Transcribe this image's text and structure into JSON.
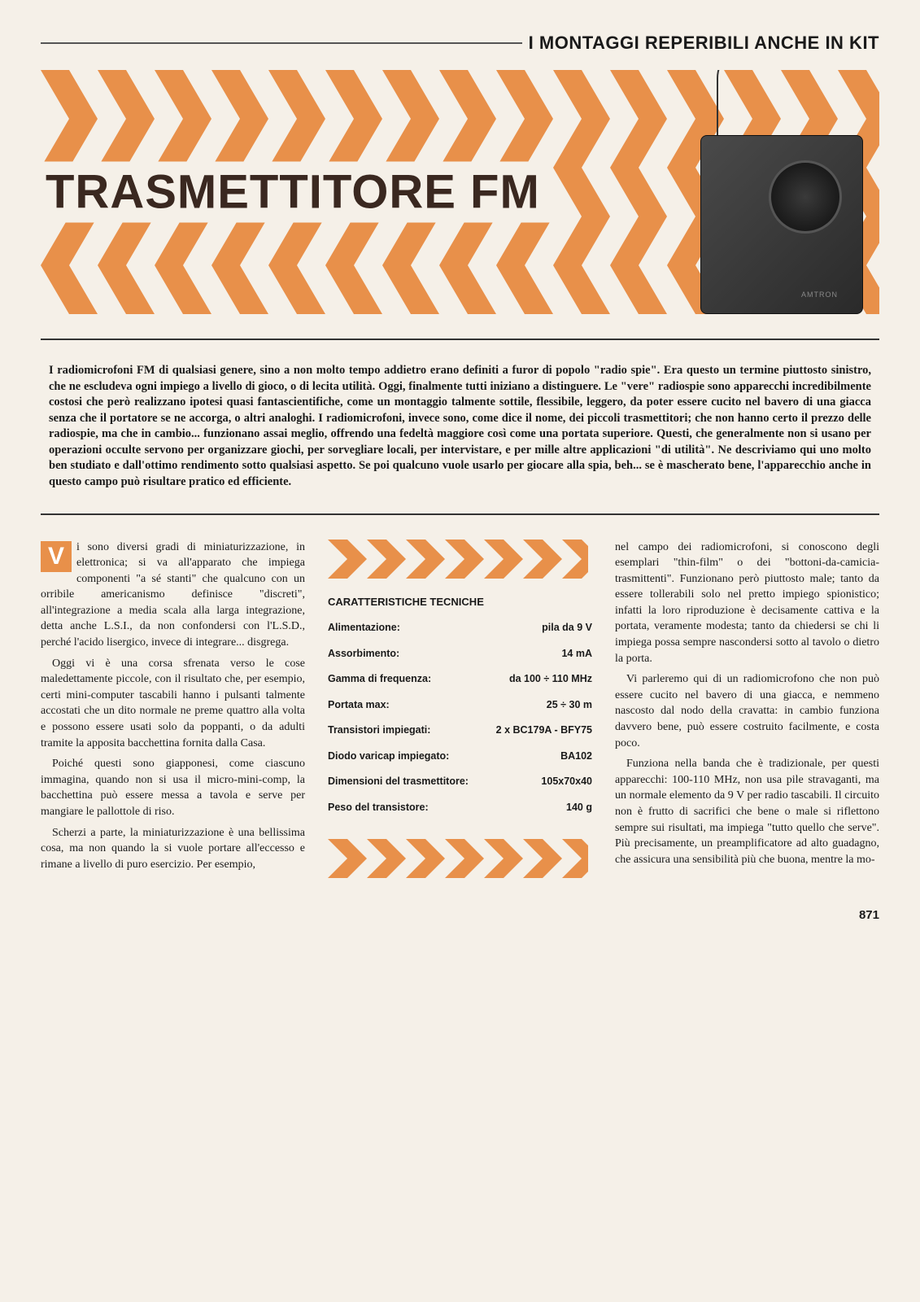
{
  "header": {
    "section_title": "I MONTAGGI REPERIBILI ANCHE IN KIT"
  },
  "hero": {
    "title": "TRASMETTITORE FM",
    "chevron_color": "#e8904a",
    "device_label": "AMTRON"
  },
  "intro": {
    "text": "I radiomicrofoni FM di qualsiasi genere, sino a non molto tempo addietro erano definiti a furor di popolo \"radio spie\". Era questo un termine piuttosto sinistro, che ne escludeva ogni impiego a livello di gioco, o di lecita utilità. Oggi, finalmente tutti iniziano a distinguere. Le \"vere\" radiospie sono apparecchi incredibilmente costosi che però realizzano ipotesi quasi fantascientifiche, come un montaggio talmente sottile, flessibile, leggero, da poter essere cucito nel bavero di una giacca senza che il portatore se ne accorga, o altri analoghi. I radiomicrofoni, invece sono, come dice il nome, dei piccoli trasmettitori; che non hanno certo il prezzo delle radiospie, ma che in cambio... funzionano assai meglio, offrendo una fedeltà maggiore così come una portata superiore. Questi, che generalmente non si usano per operazioni occulte servono per organizzare giochi, per sorvegliare locali, per intervistare, e per mille altre applicazioni \"di utilità\". Ne descriviamo qui uno molto ben studiato e dall'ottimo rendimento sotto qualsiasi aspetto. Se poi qualcuno vuole usarlo per giocare alla spia, beh... se è mascherato bene, l'apparecchio anche in questo campo può risultare pratico ed efficiente."
  },
  "col1": {
    "dropcap": "V",
    "p1": "i sono diversi gradi di miniaturizzazione, in elettronica; si va all'apparato che impiega componenti \"a sé stanti\" che qualcuno con un orribile americanismo definisce \"discreti\", all'integrazione a media scala alla larga integrazione, detta anche L.S.I., da non confondersi con l'L.S.D., perché l'acido lisergico, invece di integrare... disgrega.",
    "p2": "Oggi vi è una corsa sfrenata verso le cose maledettamente piccole, con il risultato che, per esempio, certi mini-computer tascabili hanno i pulsanti talmente accostati che un dito normale ne preme quattro alla volta e possono essere usati solo da poppanti, o da adulti tramite la apposita bacchettina fornita dalla Casa.",
    "p3": "Poiché questi sono giapponesi, come ciascuno immagina, quando non si usa il micro-mini-comp, la bacchettina può essere messa a tavola e serve per mangiare le pallottole di riso.",
    "p4": "Scherzi a parte, la miniaturizzazione è una bellissima cosa, ma non quando la si vuole portare all'eccesso e rimane a livello di puro esercizio. Per esempio,"
  },
  "specs": {
    "title": "CARATTERISTICHE TECNICHE",
    "rows": [
      {
        "label": "Alimentazione:",
        "value": "pila da 9 V"
      },
      {
        "label": "Assorbimento:",
        "value": "14 mA"
      },
      {
        "label": "Gamma di frequenza:",
        "value": "da 100 ÷ 110 MHz"
      },
      {
        "label": "Portata max:",
        "value": "25 ÷ 30 m"
      },
      {
        "label": "Transistori impiegati:",
        "value": "2 x BC179A - BFY75"
      },
      {
        "label": "Diodo varicap impiegato:",
        "value": "BA102"
      },
      {
        "label": "Dimensioni del trasmettitore:",
        "value": "105x70x40"
      },
      {
        "label": "Peso del transistore:",
        "value": "140 g"
      }
    ]
  },
  "col3": {
    "p1": "nel campo dei radiomicrofoni, si conoscono degli esemplari \"thin-film\" o dei \"bottoni-da-camicia-trasmittenti\". Funzionano però piuttosto male; tanto da essere tollerabili solo nel pretto impiego spionistico; infatti la loro riproduzione è decisamente cattiva e la portata, veramente modesta; tanto da chiedersi se chi li impiega possa sempre nascondersi sotto al tavolo o dietro la porta.",
    "p2": "Vi parleremo qui di un radiomicrofono che non può essere cucito nel bavero di una giacca, e nemmeno nascosto dal nodo della cravatta: in cambio funziona davvero bene, può essere costruito facilmente, e costa poco.",
    "p3": "Funziona nella banda che è tradizionale, per questi apparecchi: 100-110 MHz, non usa pile stravaganti, ma un normale elemento da 9 V per radio tascabili. Il circuito non è frutto di sacrifici che bene o male si riflettono sempre sui risultati, ma impiega \"tutto quello che serve\". Più precisamente, un preamplificatore ad alto guadagno, che assicura una sensibilità più che buona, mentre la mo-"
  },
  "page_number": "871",
  "styling": {
    "page_bg": "#f5f0e8",
    "accent_orange": "#e8904a",
    "rule_color": "#333333",
    "title_color": "#3a2820"
  }
}
